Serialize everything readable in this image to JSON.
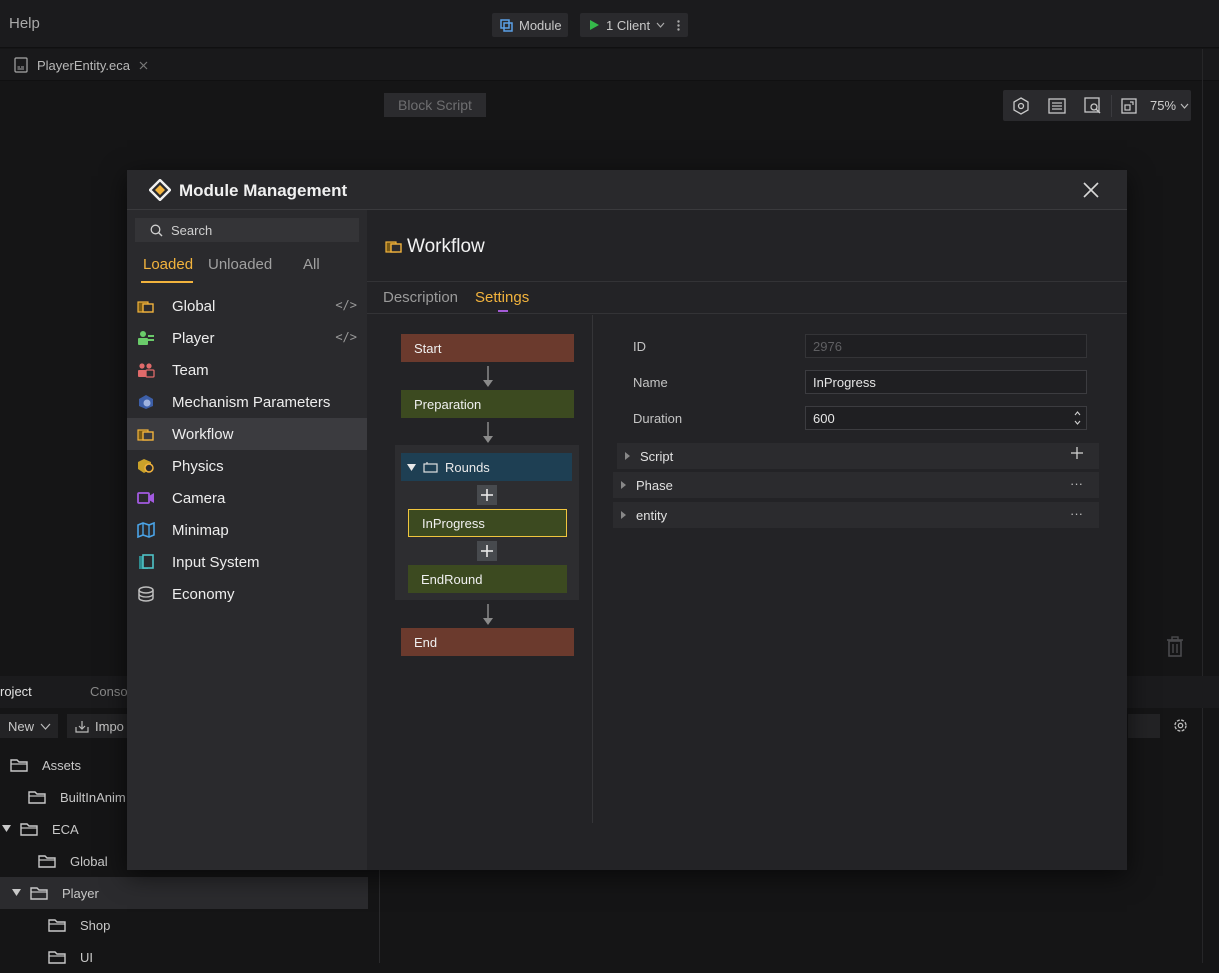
{
  "app": {
    "menu_help": "Help",
    "module_button": "Module",
    "client_button": "1 Client",
    "file_tab": "PlayerEntity.eca",
    "block_script": "Block Script",
    "zoom": "75%"
  },
  "project_panel": {
    "project_tab": "roject",
    "console_tab": "Conso",
    "new_button": "New",
    "import_button": "Impo",
    "tree": [
      {
        "label": "Assets",
        "indent": 0,
        "expanded": true
      },
      {
        "label": "BuiltInAnim",
        "indent": 1,
        "expanded": false
      },
      {
        "label": "ECA",
        "indent": 1,
        "expanded": true
      },
      {
        "label": "Global",
        "indent": 2,
        "expanded": false
      },
      {
        "label": "Player",
        "indent": 2,
        "expanded": true,
        "selected": true
      },
      {
        "label": "Shop",
        "indent": 3,
        "expanded": false
      },
      {
        "label": "UI",
        "indent": 3,
        "expanded": false
      }
    ]
  },
  "modal": {
    "title": "Module Management",
    "search_placeholder": "Search",
    "filter_tabs": [
      "Loaded",
      "Unloaded",
      "All"
    ],
    "active_filter": "Loaded",
    "modules": [
      {
        "label": "Global",
        "icon": "global-module-icon",
        "code": "</>"
      },
      {
        "label": "Player",
        "icon": "player-module-icon",
        "code": "</>"
      },
      {
        "label": "Team",
        "icon": "team-module-icon"
      },
      {
        "label": "Mechanism Parameters",
        "icon": "mechanism-icon"
      },
      {
        "label": "Workflow",
        "icon": "workflow-icon",
        "selected": true
      },
      {
        "label": "Physics",
        "icon": "physics-icon"
      },
      {
        "label": "Camera",
        "icon": "camera-icon"
      },
      {
        "label": "Minimap",
        "icon": "minimap-icon"
      },
      {
        "label": "Input System",
        "icon": "input-system-icon"
      },
      {
        "label": "Economy",
        "icon": "economy-icon"
      }
    ],
    "content": {
      "title": "Workflow",
      "tabs": [
        "Description",
        "Settings"
      ],
      "active_tab": "Settings",
      "flow": {
        "start": "Start",
        "preparation": "Preparation",
        "rounds": "Rounds",
        "in_progress": "InProgress",
        "end_round": "EndRound",
        "end": "End"
      },
      "properties": {
        "id_label": "ID",
        "id_value": "2976",
        "name_label": "Name",
        "name_value": "InProgress",
        "duration_label": "Duration",
        "duration_value": "600",
        "sections": [
          {
            "label": "Script",
            "action": "+"
          },
          {
            "label": "Phase",
            "action": "···"
          },
          {
            "label": "entity",
            "action": "···"
          }
        ]
      }
    }
  },
  "colors": {
    "accent": "#f2b33d",
    "start_end_node": "#6b3a2d",
    "phase_node": "#3c4a20",
    "rounds_header": "#1e3f53",
    "selected_border": "#f0c53e"
  }
}
